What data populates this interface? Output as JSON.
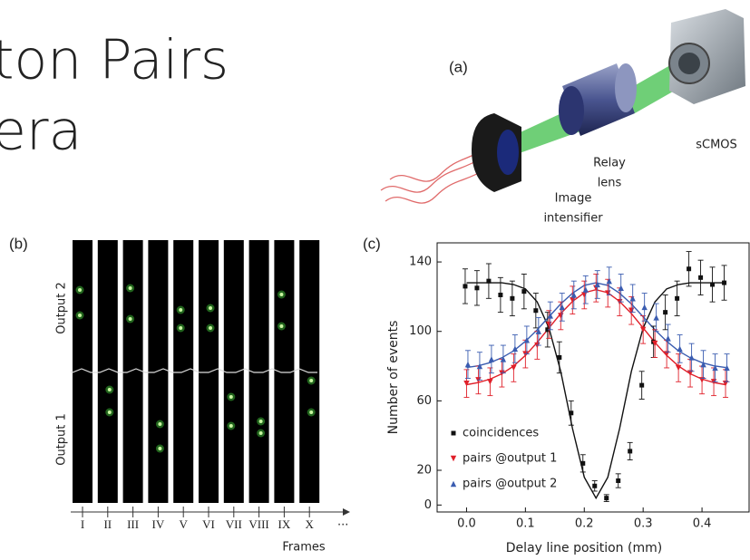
{
  "slide": {
    "title_lines": [
      "ton Pairs",
      "era"
    ]
  },
  "diagram": {
    "panel": "(a)",
    "camera": "sCMOS",
    "relay": [
      "Relay",
      "lens"
    ],
    "intensifier": [
      "Image",
      "intensifier"
    ]
  },
  "frames": {
    "panel": "(b)",
    "outputs": [
      "Output 2",
      "Output 1"
    ],
    "labels": [
      "I",
      "II",
      "III",
      "IV",
      "V",
      "VI",
      "VII",
      "VIII",
      "IX",
      "X"
    ],
    "ellipsis": "···",
    "axis_label": "Frames"
  },
  "chart_data": {
    "type": "scatter",
    "panel": "(c)",
    "x_label": "Delay line position (mm)",
    "y_label": "Number of events",
    "xlim": [
      -0.05,
      0.48
    ],
    "ylim": [
      -4,
      151
    ],
    "xticks": [
      {
        "value": 0,
        "label": "0.0"
      },
      0.1,
      0.2,
      0.3,
      0.4
    ],
    "yticks": [
      0,
      20,
      60,
      100,
      140
    ],
    "x": [
      0,
      0.02,
      0.04,
      0.06,
      0.08,
      0.1,
      0.12,
      0.14,
      0.16,
      0.18,
      0.2,
      0.22,
      0.24,
      0.26,
      0.28,
      0.3,
      0.32,
      0.34,
      0.36,
      0.38,
      0.4,
      0.42,
      0.44
    ],
    "series": [
      {
        "name": "coincidences",
        "color": "#111111",
        "marker": "square",
        "values": [
          126,
          125,
          129,
          121,
          119,
          123,
          112,
          101,
          85,
          53,
          24,
          11,
          4,
          14,
          31,
          69,
          94,
          111,
          119,
          136,
          131,
          127,
          128
        ],
        "errors": [
          10,
          10,
          10,
          10,
          10,
          10,
          10,
          10,
          9,
          7,
          5,
          3,
          2,
          4,
          5,
          8,
          9,
          10,
          10,
          10,
          10,
          10,
          10
        ]
      },
      {
        "name": "pairs @output 1",
        "color": "#e0202a",
        "marker": "triangle-down",
        "values": [
          70,
          72,
          71,
          76,
          79,
          87,
          92,
          104,
          109,
          118,
          121,
          125,
          122,
          117,
          112,
          101,
          93,
          87,
          79,
          76,
          72,
          71,
          70
        ],
        "errors": [
          8,
          8,
          8,
          8,
          8,
          8,
          8,
          8,
          8,
          8,
          8,
          8,
          8,
          8,
          8,
          8,
          8,
          8,
          8,
          8,
          8,
          8,
          8
        ]
      },
      {
        "name": "pairs @output 2",
        "color": "#3a5cb0",
        "marker": "triangle-up",
        "values": [
          81,
          80,
          84,
          84,
          90,
          95,
          100,
          109,
          114,
          121,
          124,
          127,
          129,
          125,
          119,
          114,
          108,
          96,
          90,
          85,
          81,
          79,
          79
        ],
        "errors": [
          8,
          8,
          8,
          8,
          8,
          8,
          8,
          8,
          8,
          8,
          8,
          8,
          8,
          8,
          8,
          8,
          8,
          8,
          8,
          8,
          8,
          8,
          8
        ]
      }
    ],
    "fits": [
      {
        "color": "#111111",
        "values": [
          128,
          128,
          128,
          128,
          127,
          124.5,
          117,
          102,
          77,
          44,
          16,
          4,
          16,
          44,
          77,
          102,
          117,
          124.5,
          127,
          128,
          128,
          128,
          128
        ]
      },
      {
        "color": "#e0202a",
        "values": [
          69.3,
          70.5,
          72.5,
          75.6,
          80.1,
          86.2,
          93.6,
          102,
          110.3,
          117.3,
          122.3,
          124,
          122.3,
          117.3,
          110.3,
          102,
          93.6,
          86.2,
          80.1,
          75.6,
          72.5,
          70.5,
          69.3
        ]
      },
      {
        "color": "#3a5cb0",
        "values": [
          79.2,
          80.2,
          82,
          84.8,
          88.8,
          94.3,
          100.9,
          108.4,
          115.8,
          122,
          126.5,
          128,
          126.5,
          122,
          115.8,
          108.4,
          100.9,
          94.3,
          88.8,
          84.8,
          82,
          80.2,
          79.2
        ]
      }
    ]
  }
}
